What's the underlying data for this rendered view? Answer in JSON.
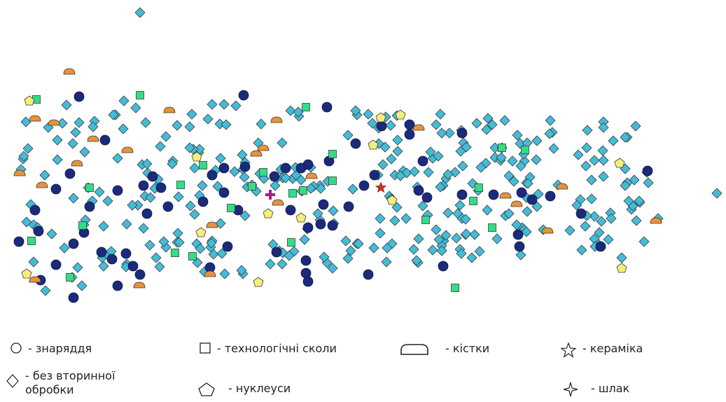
{
  "colors": {
    "navy": "#1b2a7a",
    "cyan": "#44bcd8",
    "green": "#33dd88",
    "yellow": "#f5ee7a",
    "orange": "#e8923a",
    "red": "#cc3322",
    "magenta": "#a01d8a"
  },
  "legend": {
    "tools": "- знаряддя",
    "flakes": "- технологічні сколи",
    "bones": "- кістки",
    "ceramics": "- кераміка",
    "no_retouch": "- без вторинної\nобробки",
    "cores": "- нуклеуси",
    "slag": "- шлак"
  },
  "symbols": {
    "tools": "circle-outline-icon",
    "flakes": "square-outline-icon",
    "bones": "dome-outline-icon",
    "ceramics": "star-outline-icon",
    "no_retouch": "diamond-outline-icon",
    "cores": "pentagon-outline-icon",
    "slag": "four-point-star-icon"
  }
}
